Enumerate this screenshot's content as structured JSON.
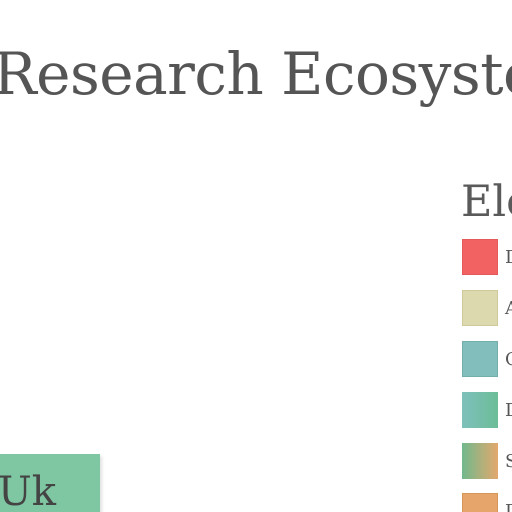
{
  "title": "Research Ecosystem",
  "legend": {
    "heading": "Ele",
    "items": [
      {
        "label": "D",
        "color": "#f26262",
        "border": "#e35a5a"
      },
      {
        "label": "A",
        "color": "#ddd9ae",
        "border": "#cfca9a"
      },
      {
        "label": "C",
        "color": "#82bfbc",
        "border": "#72aeab"
      },
      {
        "label": "D",
        "gradient": [
          "#7ec0bb",
          "#6cbd98"
        ]
      },
      {
        "label": "S",
        "gradient": [
          "#71b98d",
          "#e3a86d"
        ]
      },
      {
        "label": "D",
        "color": "#e6a56b",
        "border": "#d79559"
      }
    ]
  },
  "node": {
    "label": "Uk",
    "color": "#7fc6a2"
  }
}
